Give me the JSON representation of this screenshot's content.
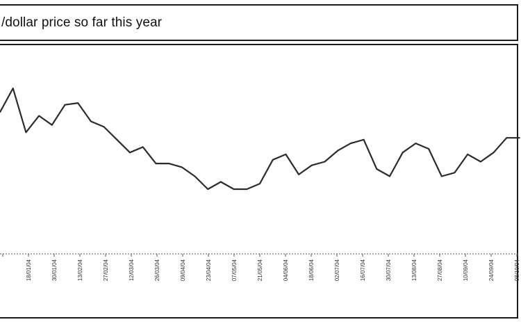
{
  "chart_data": {
    "type": "line",
    "title": "/dollar price so far this year",
    "xlabel": "",
    "ylabel": "",
    "grid": false,
    "legend": "none",
    "line_color": "#2b2b2b",
    "x_ticks": [
      "",
      "18/01/04",
      "30/01/04",
      "13/02/04",
      "27/02/04",
      "12/03/04",
      "26/03/04",
      "09/04/04",
      "23/04/04",
      "07/05/04",
      "21/05/04",
      "04/06/04",
      "18/06/04",
      "02/07/04",
      "16/07/04",
      "30/07/04",
      "13/08/04",
      "27/08/04",
      "10/09/04",
      "24/09/04",
      "08/10/04"
    ],
    "series": [
      {
        "values": [
          86,
          99,
          75,
          84,
          79,
          90,
          91,
          81,
          78,
          71,
          64,
          67,
          58,
          58,
          56,
          51,
          44,
          48,
          44,
          44,
          47,
          60,
          63,
          52,
          57,
          59,
          65,
          69,
          71,
          55,
          51,
          64,
          69,
          66,
          51,
          53,
          63,
          59,
          64,
          72,
          72
        ]
      }
    ]
  }
}
